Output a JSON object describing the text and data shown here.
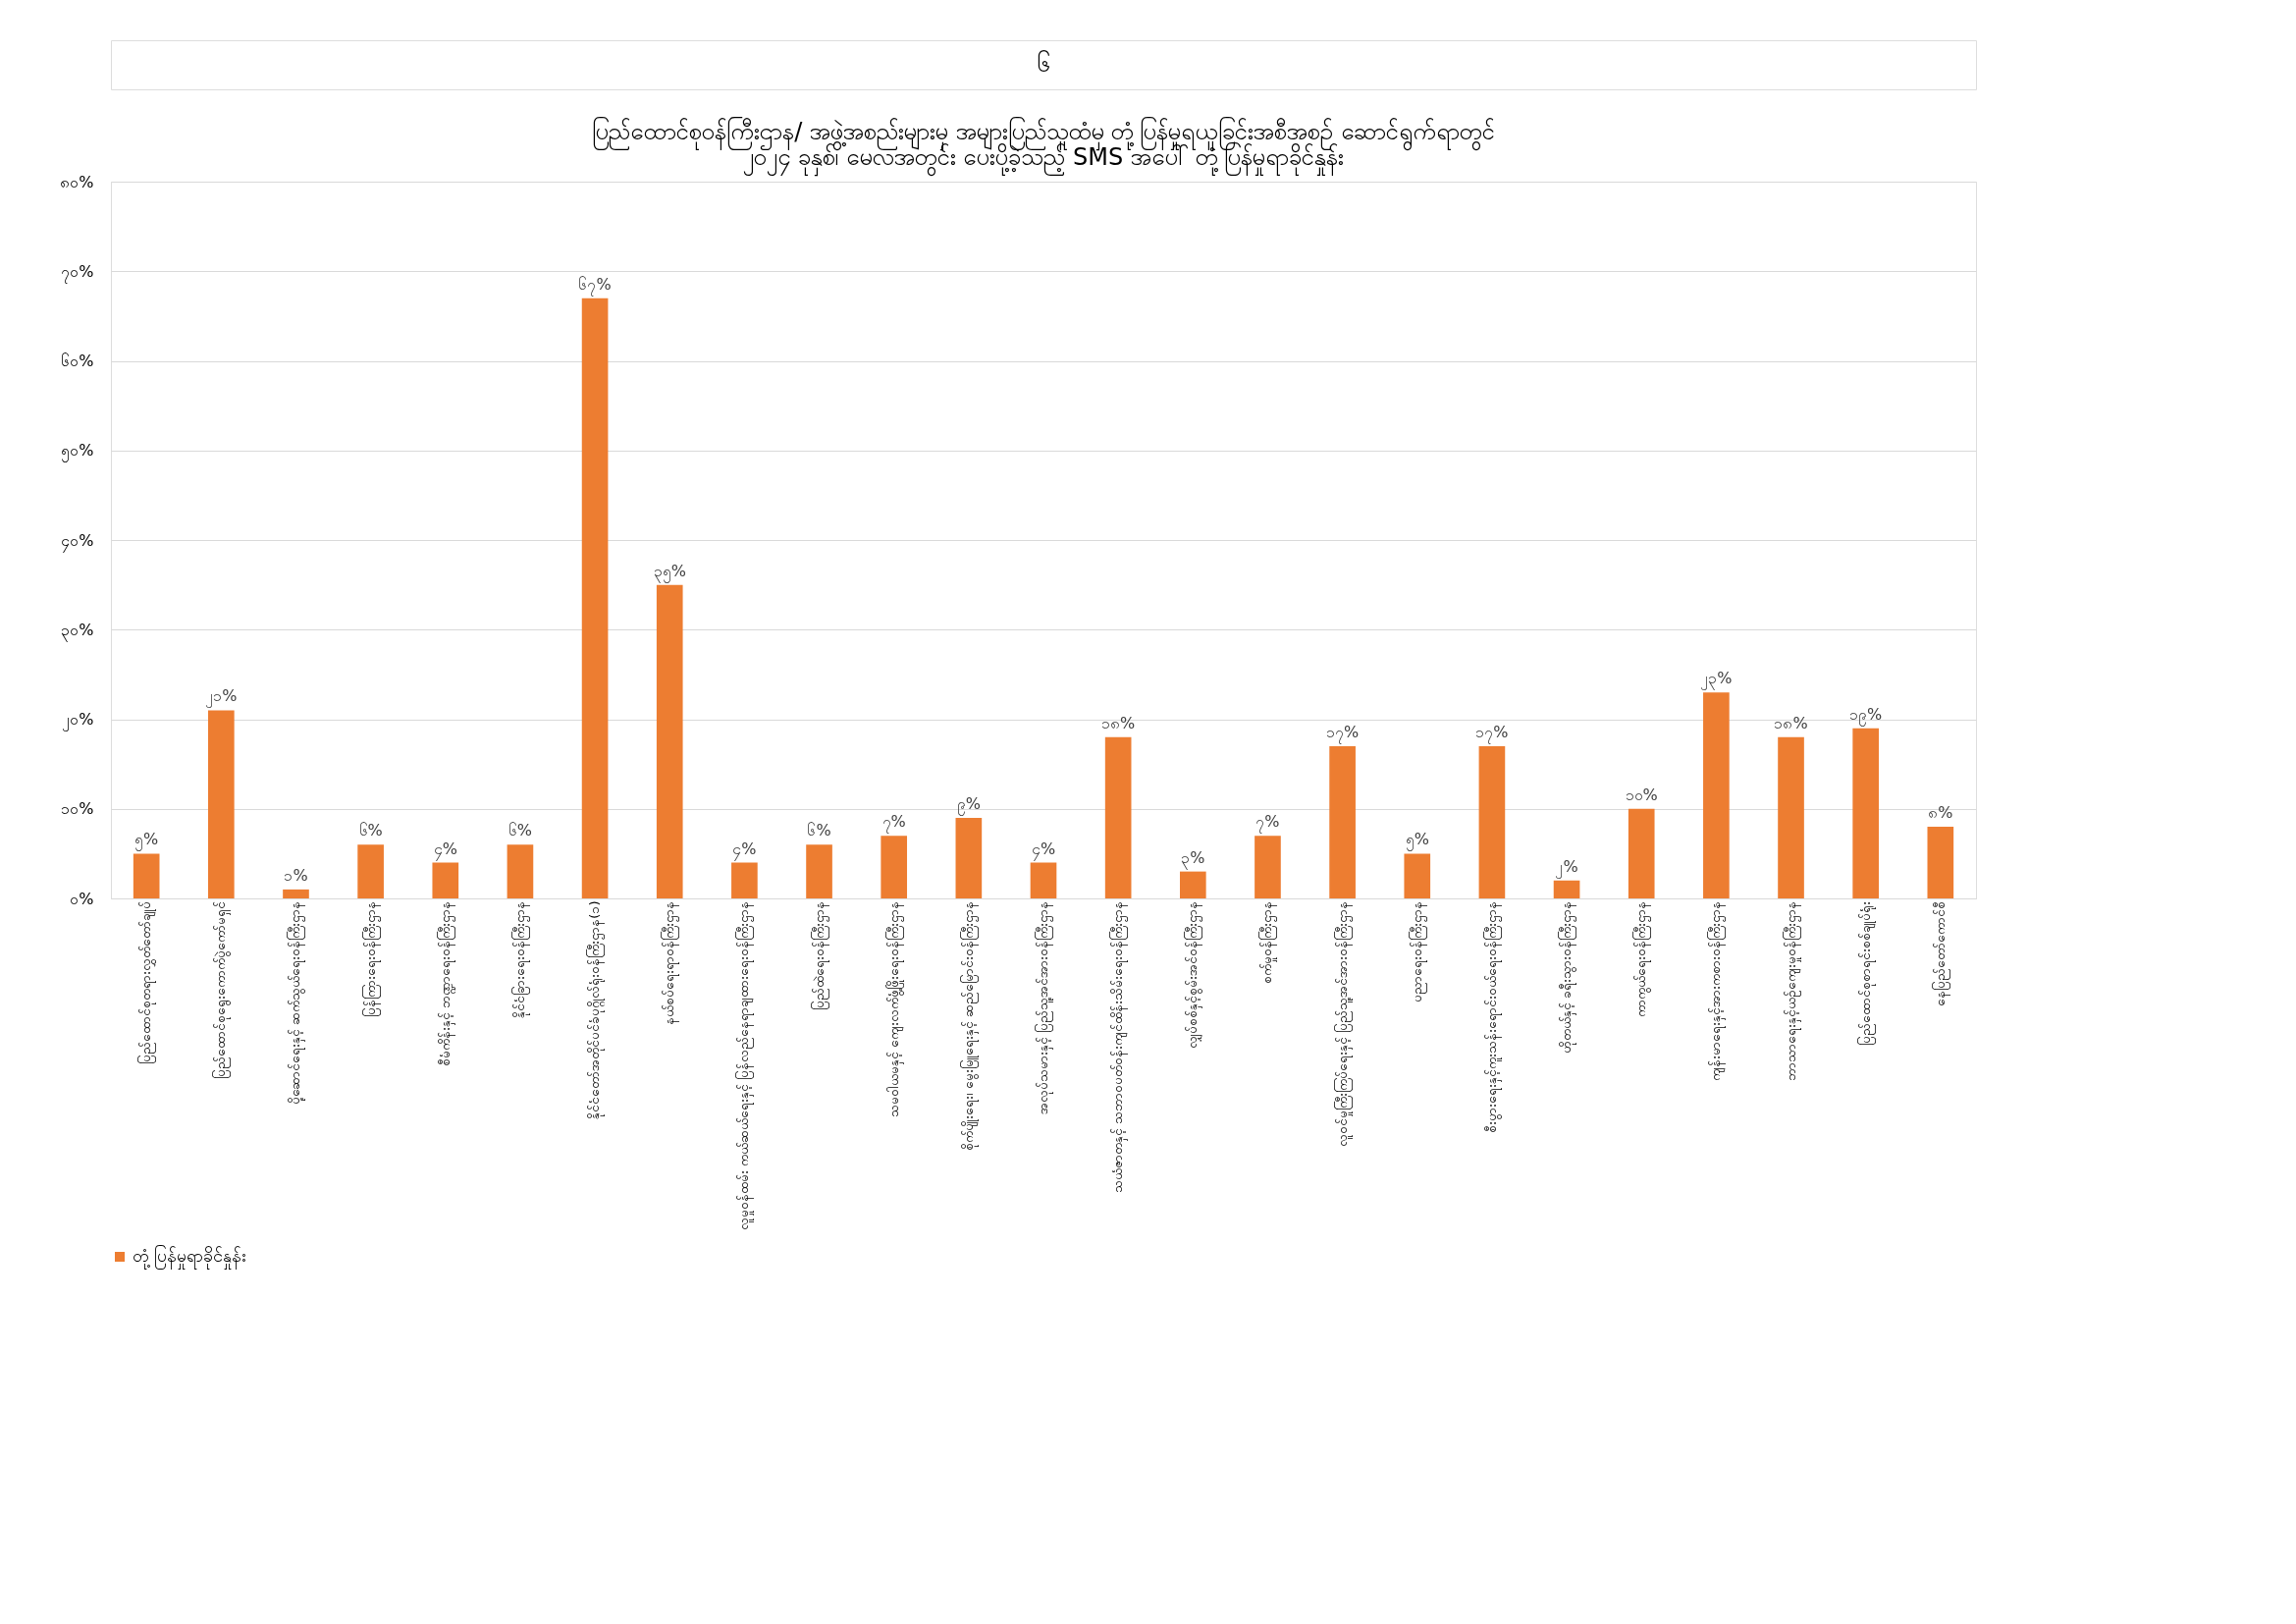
{
  "chart_data": {
    "type": "bar",
    "title": [
      "ပြည်ထောင်စုဝန်ကြီးဌာန/ အဖွဲ့အစည်းများမှ အများပြည်သူထံမှ တုံ့ပြန်မှုရယူခြင်းအစီအစဉ် ဆောင်ရွက်ရာတွင်",
      "၂၀၂၄ ခုနှစ်၊ မေလအတွင်း ပေးပို့ခဲ့သည့် SMS အပေါ် တုံ့ပြန်မှုရာခိုင်နှုန်း"
    ],
    "annotations": [
      "၆"
    ],
    "categories": [
      "ပြည်ထောင်စုတရားလွှတ်တော်ချုပ်",
      "ပြည်ထောင်စုရွေးကောက်ပွဲကော်မရှင်",
      "ပို့ဆောင်ရေးနှင့် ဆက်သွယ်ရေးဝန်ကြီးဌာန",
      "ပြန်ကြားရေးဝန်ကြီးဌာန",
      "စီမံကိန်းနှင့် ဘဏ္ဍာရေးဝန်ကြီးဌာန",
      "နိုင်ငံခြားရေးဝန်ကြီးဌာန",
      "နိုင်ငံတော်အတိုင်ပင်ခံပုဂ္ဂိုလ်ရုံးဝန်ကြီးဌာန(၁)",
      "နယ်စပ်ရေးရာဝန်ကြီးဌာန",
      "လူမှုဝန်ထမ်း ကယ်ဆယ်ရေးနှင့် ပြန်လည်နေရာချထားရေးဝန်ကြီးဌာန",
      "ပြည်ထဲရေးဝန်ကြီးဌာန",
      "သမဝါယမနှင့် ကျေးလက်ဖွံ့ဖြိုးရေးဝန်ကြီးဌာန",
      "စိုက်ပျိုးရေး၊ မွေးမြူရေးနှင့် ဆည်မြောင်းဝန်ကြီးဌာန",
      "အလုပ်သမားနှင့် ပြည်သူ့အင်အားဝန်ကြီးဌာန",
      "သယံဇာတနှင့် သဘာဝပတ်ဝန်းကျင်ထိန်းသိမ်းရေးဝန်ကြီးဌာန",
      "လျှပ်စစ်နှင့်စွမ်းအင်ဝန်ကြီးဌာန",
      "စက်မှုဝန်ကြီးဌာန",
      "လူဝင်မှုကြီးကြပ်ရေးနှင့် ပြည်သူ့အင်အားဝန်ကြီးဌာန",
      "ပညာရေးဝန်ကြီးဌာန",
      "စီးပွားရေးနှင့်ကူးသန်းရောင်းဝယ်ရေးဝန်ကြီးဌာန",
      "ဟိုတယ်နှင့် ခရီးသွားဝန်ကြီးဌာန",
      "ကာကွယ်ရေးဝန်ကြီးဌာန",
      "ကျန်းမာရေးနှင့်အားကစားဝန်ကြီးဌာန",
      "ဘာသာရေးနှင့်ယဉ်ကျေးမှုဝန်ကြီးဌာန",
      "ပြည်ထောင်စုစာရင်းစစ်ချုပ်ရုံး",
      "နေပြည်တော်ကောင်စီ"
    ],
    "series": [
      {
        "name": "တုံ့ပြန်မှုရာခိုင်နှုန်း",
        "color": "#ed7d31",
        "values": [
          5,
          21,
          1,
          6,
          4,
          6,
          67,
          35,
          4,
          6,
          7,
          9,
          4,
          18,
          3,
          7,
          17,
          5,
          17,
          2,
          10,
          23,
          18,
          19,
          8
        ],
        "value_labels": [
          "၅%",
          "၂၁%",
          "၁%",
          "၆%",
          "၄%",
          "၆%",
          "၆၇%",
          "၃၅%",
          "၄%",
          "၆%",
          "၇%",
          "၉%",
          "၄%",
          "၁၈%",
          "၃%",
          "၇%",
          "၁၇%",
          "၅%",
          "၁၇%",
          "၂%",
          "၁၀%",
          "၂၃%",
          "၁၈%",
          "၁၉%",
          "၈%"
        ]
      }
    ],
    "ylim": [
      0,
      80
    ],
    "yticks": [
      {
        "value": 0,
        "label": "၀%"
      },
      {
        "value": 10,
        "label": "၁၀%"
      },
      {
        "value": 20,
        "label": "၂၀%"
      },
      {
        "value": 30,
        "label": "၃၀%"
      },
      {
        "value": 40,
        "label": "၄၀%"
      },
      {
        "value": 50,
        "label": "၅၀%"
      },
      {
        "value": 60,
        "label": "၆၀%"
      },
      {
        "value": 70,
        "label": "၇၀%"
      },
      {
        "value": 80,
        "label": "၈၀%"
      }
    ],
    "grid": "y",
    "legend": "bottom"
  }
}
